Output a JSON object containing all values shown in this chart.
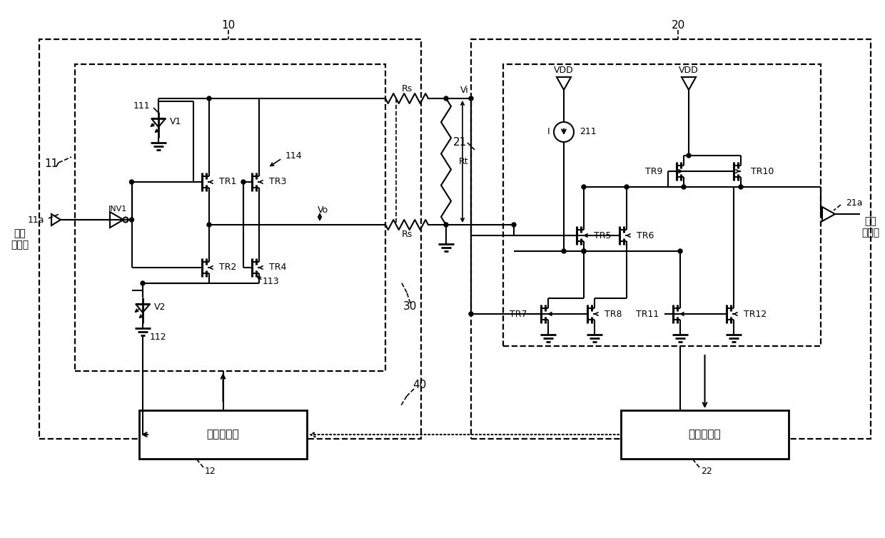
{
  "bg_color": "#ffffff",
  "lc": "#000000",
  "label_10": "10",
  "label_20": "20",
  "label_11": "11",
  "label_21": "21",
  "label_11a": "11a",
  "label_21a": "21a",
  "label_12": "12",
  "label_22": "22",
  "label_30": "30",
  "label_40": "40",
  "label_111": "111",
  "label_112": "112",
  "label_113": "113",
  "label_114": "114",
  "label_211": "211",
  "label_INV1": "INV1",
  "label_V1": "V1",
  "label_V2": "V2",
  "label_TR1": "TR1",
  "label_TR2": "TR2",
  "label_TR3": "TR3",
  "label_TR4": "TR4",
  "label_TR5": "TR5",
  "label_TR6": "TR6",
  "label_TR7": "TR7",
  "label_TR8": "TR8",
  "label_TR9": "TR9",
  "label_TR10": "TR10",
  "label_TR11": "TR11",
  "label_TR12": "TR12",
  "label_Rs": "Rs",
  "label_Rt": "Rt",
  "label_Vo": "Vo",
  "label_Vi": "Vi",
  "label_VDD": "VDD",
  "label_I": "I",
  "label_data_in": "数据\n输入端",
  "label_data_out": "数据\n输出端",
  "label_amp_ctrl": "幅度控制器",
  "label_amp_det": "幅度检测器"
}
